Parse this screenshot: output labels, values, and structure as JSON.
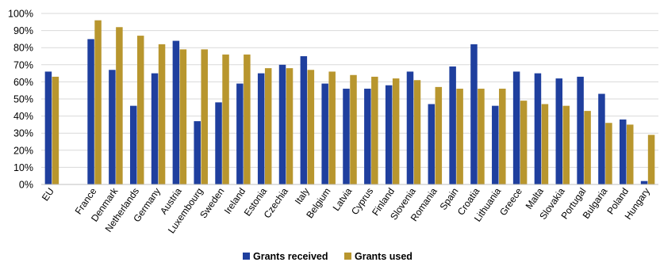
{
  "chart_data": {
    "type": "bar",
    "categories": [
      "EU",
      "",
      "France",
      "Denmark",
      "Netherlands",
      "Germany",
      "Austria",
      "Luxembourg",
      "Sweden",
      "Ireland",
      "Estonia",
      "Czechia",
      "Italy",
      "Belgium",
      "Latvia",
      "Cyprus",
      "Finland",
      "Slovenia",
      "Romania",
      "Spain",
      "Croatia",
      "Lithuania",
      "Greece",
      "Malta",
      "Slovakia",
      "Portugal",
      "Bulgaria",
      "Poland",
      "Hungary"
    ],
    "series": [
      {
        "name": "Grants received",
        "color": "#1f3f9e",
        "values": [
          66,
          null,
          85,
          67,
          46,
          65,
          84,
          37,
          48,
          59,
          65,
          70,
          75,
          59,
          56,
          56,
          58,
          66,
          47,
          69,
          82,
          46,
          66,
          65,
          62,
          63,
          53,
          38,
          2
        ]
      },
      {
        "name": "Grants used",
        "color": "#b8962e",
        "values": [
          63,
          null,
          96,
          92,
          87,
          82,
          79,
          79,
          76,
          76,
          68,
          68,
          67,
          66,
          64,
          63,
          62,
          61,
          57,
          56,
          56,
          56,
          49,
          47,
          46,
          43,
          36,
          35,
          29
        ]
      }
    ],
    "yticks": [
      "0%",
      "10%",
      "20%",
      "30%",
      "40%",
      "50%",
      "60%",
      "70%",
      "80%",
      "90%",
      "100%"
    ],
    "ylim": [
      0,
      100
    ],
    "grid": true,
    "legend": "bottom"
  }
}
